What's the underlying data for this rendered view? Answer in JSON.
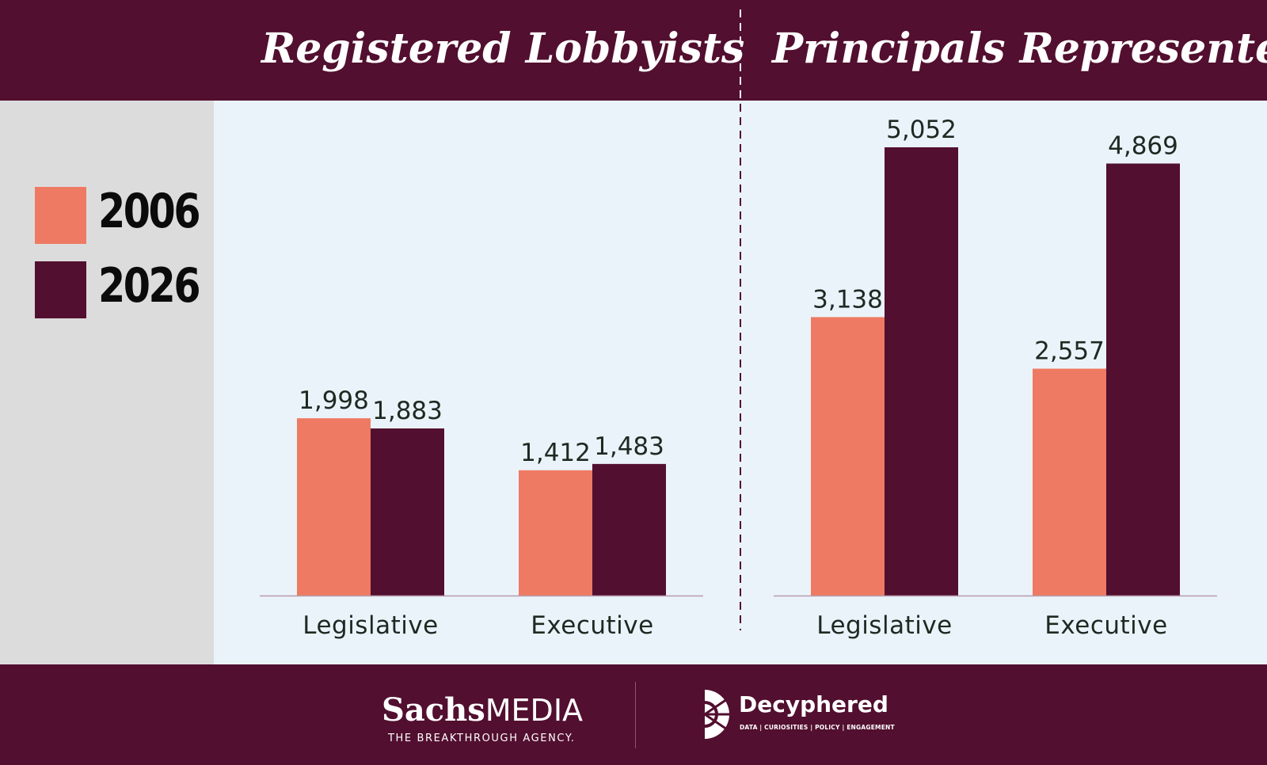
{
  "colors": {
    "series_2006": "#ef7a63",
    "series_2026": "#520f2f",
    "header_bg": "#520f2f",
    "plot_bg": "#ebf3fa",
    "legend_bg": "#dcdcdc",
    "label_text": "#1c2a22"
  },
  "legend": [
    {
      "label": "2006",
      "color": "#ef7a63"
    },
    {
      "label": "2026",
      "color": "#520f2f"
    }
  ],
  "chart_data": [
    {
      "type": "bar",
      "title": "Registered Lobbyists",
      "categories": [
        "Legislative",
        "Executive"
      ],
      "series": [
        {
          "name": "2006",
          "values": [
            1998,
            1412
          ],
          "labels": [
            "1,998",
            "1,412"
          ]
        },
        {
          "name": "2026",
          "values": [
            1883,
            1483
          ],
          "labels": [
            "1,883",
            "1,483"
          ]
        }
      ],
      "ylim": [
        0,
        5500
      ]
    },
    {
      "type": "bar",
      "title": "Principals Represented",
      "categories": [
        "Legislative",
        "Executive"
      ],
      "series": [
        {
          "name": "2006",
          "values": [
            3138,
            2557
          ],
          "labels": [
            "3,138",
            "2,557"
          ]
        },
        {
          "name": "2026",
          "values": [
            5052,
            4869
          ],
          "labels": [
            "5,052",
            "4,869"
          ]
        }
      ],
      "ylim": [
        0,
        5500
      ]
    }
  ],
  "footer": {
    "sachs_brand_a": "Sachs",
    "sachs_brand_b": "MEDIA",
    "sachs_tagline": "THE BREAKTHROUGH AGENCY.",
    "decyphered_name": "Decyphered",
    "decyphered_tagline": "DATA | CURIOSITIES | POLICY | ENGAGEMENT"
  }
}
